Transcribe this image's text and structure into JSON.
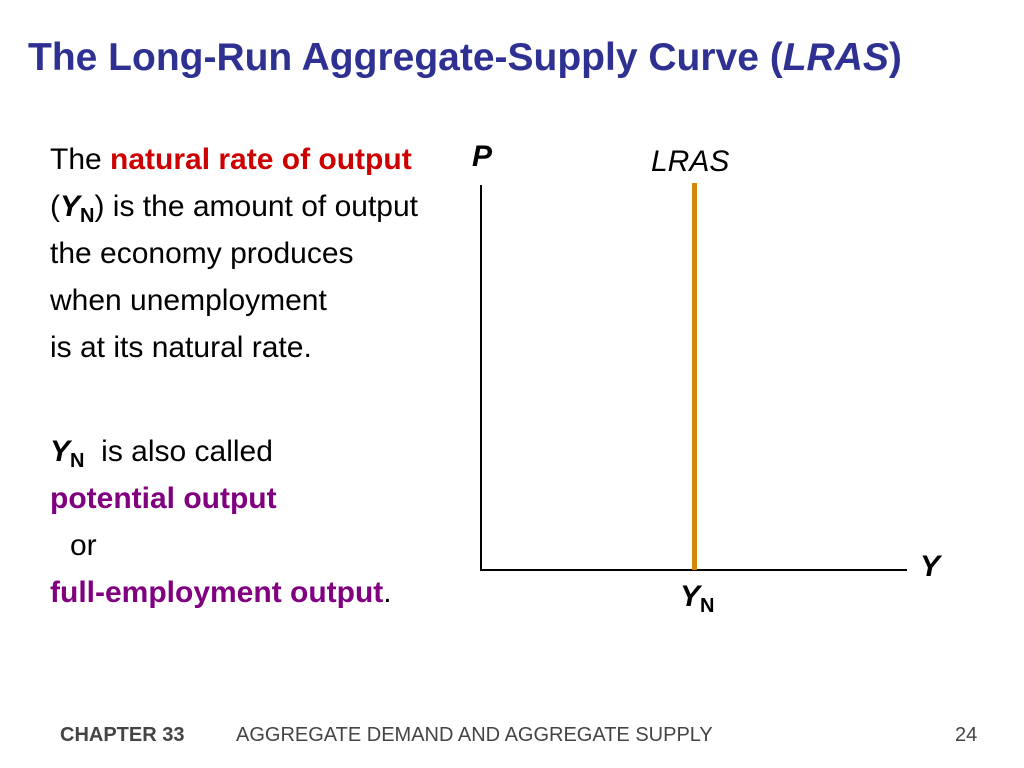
{
  "title": {
    "main": "The Long-Run Aggregate-Supply Curve (",
    "italic": "LRAS",
    "close": ")"
  },
  "para1": {
    "t1": "The ",
    "highlight": "natural rate of output",
    "t2": " (",
    "y": "Y",
    "n": "N",
    "t3": ") is the amount of output",
    "line2": "the economy produces",
    "line3": "when unemployment",
    "line4": "is at its natural rate."
  },
  "para2": {
    "y": "Y",
    "n": "N",
    "t1": " is also called",
    "potential": "potential output",
    "or": "or",
    "full": "full-employment output",
    "period": "."
  },
  "graph": {
    "p_label": "P",
    "lras_label": "LRAS",
    "y_label": "Y",
    "yn_y": "Y",
    "yn_n": "N"
  },
  "footer": {
    "chapter": "CHAPTER 33",
    "text": "AGGREGATE DEMAND AND AGGREGATE SUPPLY",
    "page": "24"
  },
  "colors": {
    "title": "#2e3192",
    "red": "#cc0000",
    "purple": "#800080",
    "lras": "#d4860b"
  }
}
